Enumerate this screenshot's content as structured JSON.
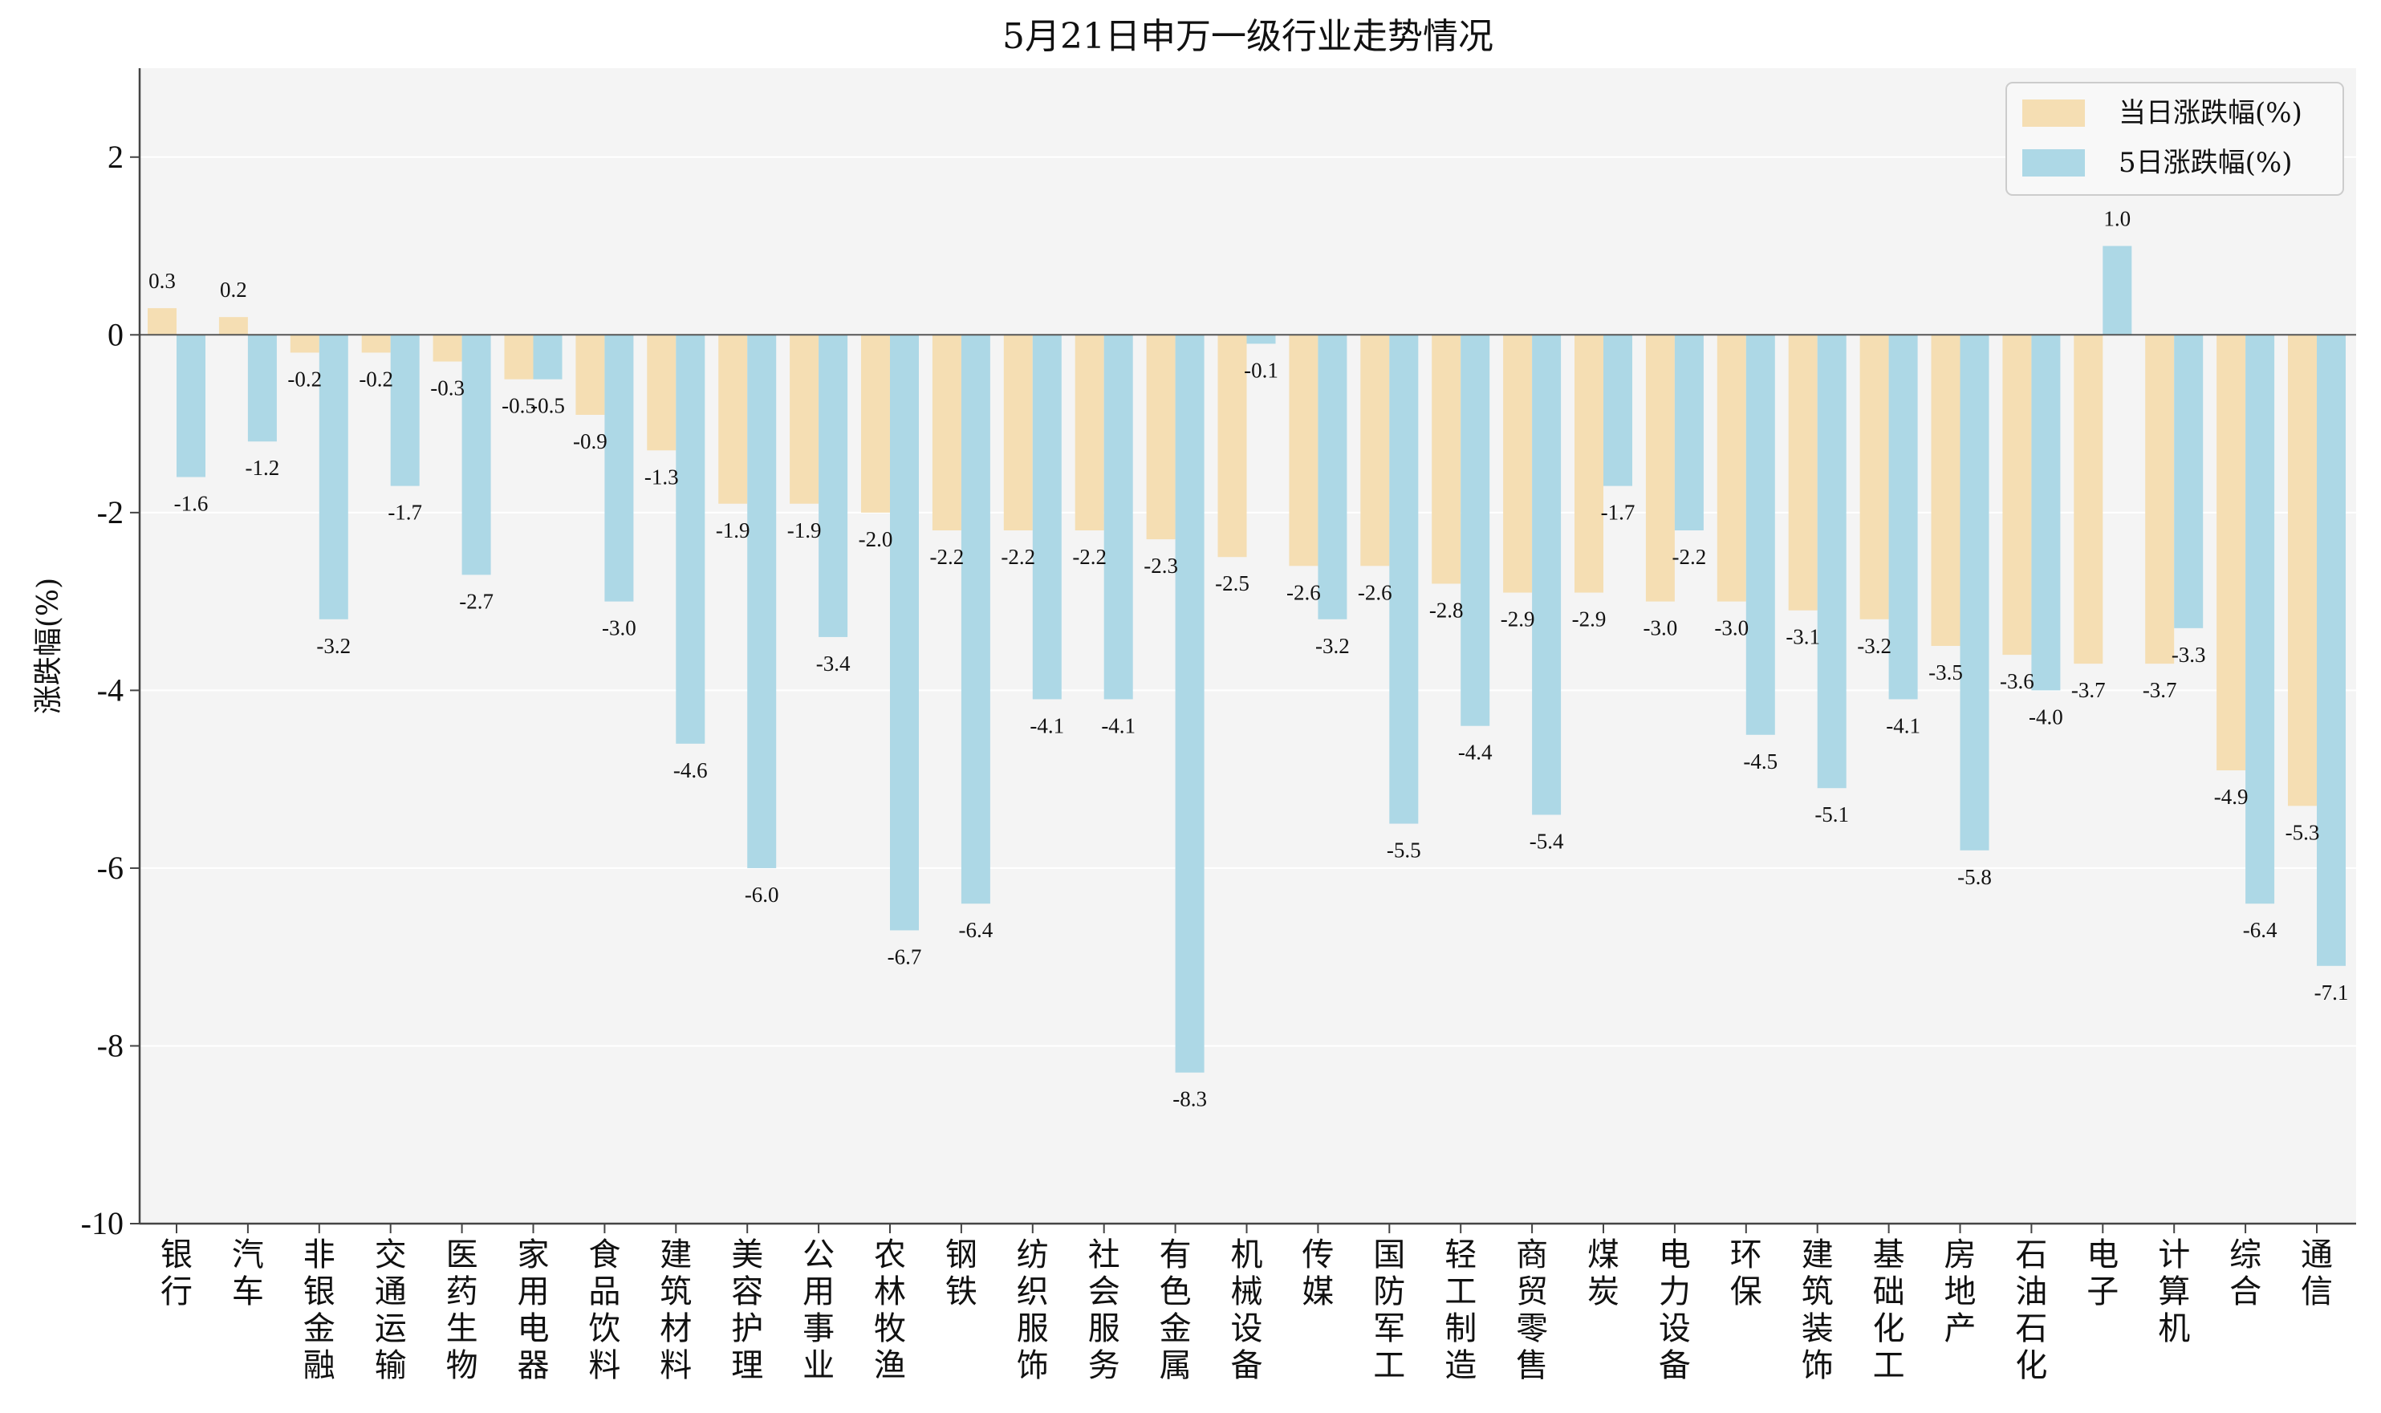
{
  "chart_data": {
    "type": "bar",
    "title": "5月21日申万一级行业走势情况",
    "ylabel": "涨跌幅(%)",
    "xlabel": "",
    "ylim": [
      -10,
      3
    ],
    "yticks": [
      2,
      0,
      -2,
      -4,
      -6,
      -8,
      -10
    ],
    "grid": true,
    "legend_position": "top-right",
    "categories": [
      "银行",
      "汽车",
      "非银金融",
      "交通运输",
      "医药生物",
      "家用电器",
      "食品饮料",
      "建筑材料",
      "美容护理",
      "公用事业",
      "农林牧渔",
      "钢铁",
      "纺织服饰",
      "社会服务",
      "有色金属",
      "机械设备",
      "传媒",
      "国防军工",
      "轻工制造",
      "商贸零售",
      "煤炭",
      "电力设备",
      "环保",
      "建筑装饰",
      "基础化工",
      "房地产",
      "石油石化",
      "电子",
      "计算机",
      "综合",
      "通信"
    ],
    "series": [
      {
        "name": "当日涨跌幅(%)",
        "color": "#f5deb3",
        "values": [
          0.3,
          0.2,
          -0.2,
          -0.2,
          -0.3,
          -0.5,
          -0.9,
          -1.3,
          -1.9,
          -1.9,
          -2.0,
          -2.2,
          -2.2,
          -2.2,
          -2.3,
          -2.5,
          -2.6,
          -2.6,
          -2.8,
          -2.9,
          -2.9,
          -3.0,
          -3.0,
          -3.1,
          -3.2,
          -3.5,
          -3.6,
          -3.7,
          -3.7,
          -4.9,
          -5.3
        ]
      },
      {
        "name": "5日涨跌幅(%)",
        "color": "#add8e6",
        "values": [
          -1.6,
          -1.2,
          -3.2,
          -1.7,
          -2.7,
          -0.5,
          -3.0,
          -4.6,
          -6.0,
          -3.4,
          -6.7,
          -6.4,
          -4.1,
          -4.1,
          -8.3,
          -0.1,
          -3.2,
          -5.5,
          -4.4,
          -5.4,
          -1.7,
          -2.2,
          -4.5,
          -5.1,
          -4.1,
          -5.8,
          -4.0,
          1.0,
          -3.3,
          -6.4,
          -7.1
        ]
      }
    ]
  }
}
